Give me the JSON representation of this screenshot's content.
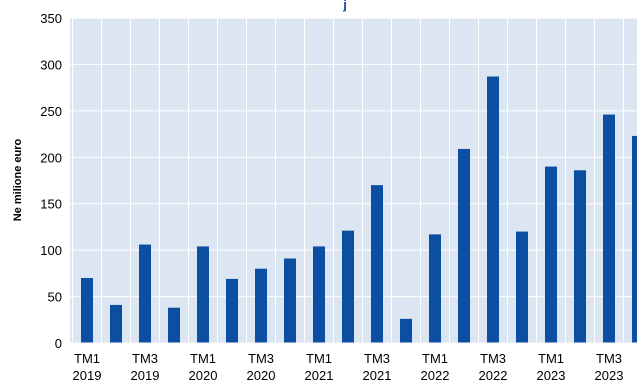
{
  "chart_data": {
    "type": "bar",
    "title_visible_fragment": "j",
    "ylabel": "Ne milione euro",
    "xlabel": "",
    "ylim": [
      0,
      350
    ],
    "y_ticks": [
      "0",
      "50",
      "100",
      "150",
      "200",
      "250",
      "300",
      "350"
    ],
    "grid": true,
    "legend": "none",
    "colors": {
      "bar": "#0b4ea2",
      "plot_bg": "#dce6f2",
      "grid": "#ffffff",
      "title": "#0b4ea2"
    },
    "categories": [
      "TM1 2019",
      "TM2 2019",
      "TM3 2019",
      "TM4 2019",
      "TM1 2020",
      "TM2 2020",
      "TM3 2020",
      "TM4 2020",
      "TM1 2021",
      "TM2 2021",
      "TM3 2021",
      "TM4 2021",
      "TM1 2022",
      "TM2 2022",
      "TM3 2022",
      "TM4 2022",
      "TM1 2023",
      "TM2 2023",
      "TM3 2023",
      "TM4 2023"
    ],
    "x_tick_labels": [
      {
        "index": 0,
        "line1": "TM1",
        "line2": "2019"
      },
      {
        "index": 2,
        "line1": "TM3",
        "line2": "2019"
      },
      {
        "index": 4,
        "line1": "TM1",
        "line2": "2020"
      },
      {
        "index": 6,
        "line1": "TM3",
        "line2": "2020"
      },
      {
        "index": 8,
        "line1": "TM1",
        "line2": "2021"
      },
      {
        "index": 10,
        "line1": "TM3",
        "line2": "2021"
      },
      {
        "index": 12,
        "line1": "TM1",
        "line2": "2022"
      },
      {
        "index": 14,
        "line1": "TM3",
        "line2": "2022"
      },
      {
        "index": 16,
        "line1": "TM1",
        "line2": "2023"
      },
      {
        "index": 18,
        "line1": "TM3",
        "line2": "2023"
      }
    ],
    "values": [
      70,
      41,
      106,
      38,
      104,
      69,
      80,
      91,
      104,
      121,
      170,
      26,
      117,
      209,
      287,
      120,
      190,
      186,
      246,
      223
    ]
  }
}
